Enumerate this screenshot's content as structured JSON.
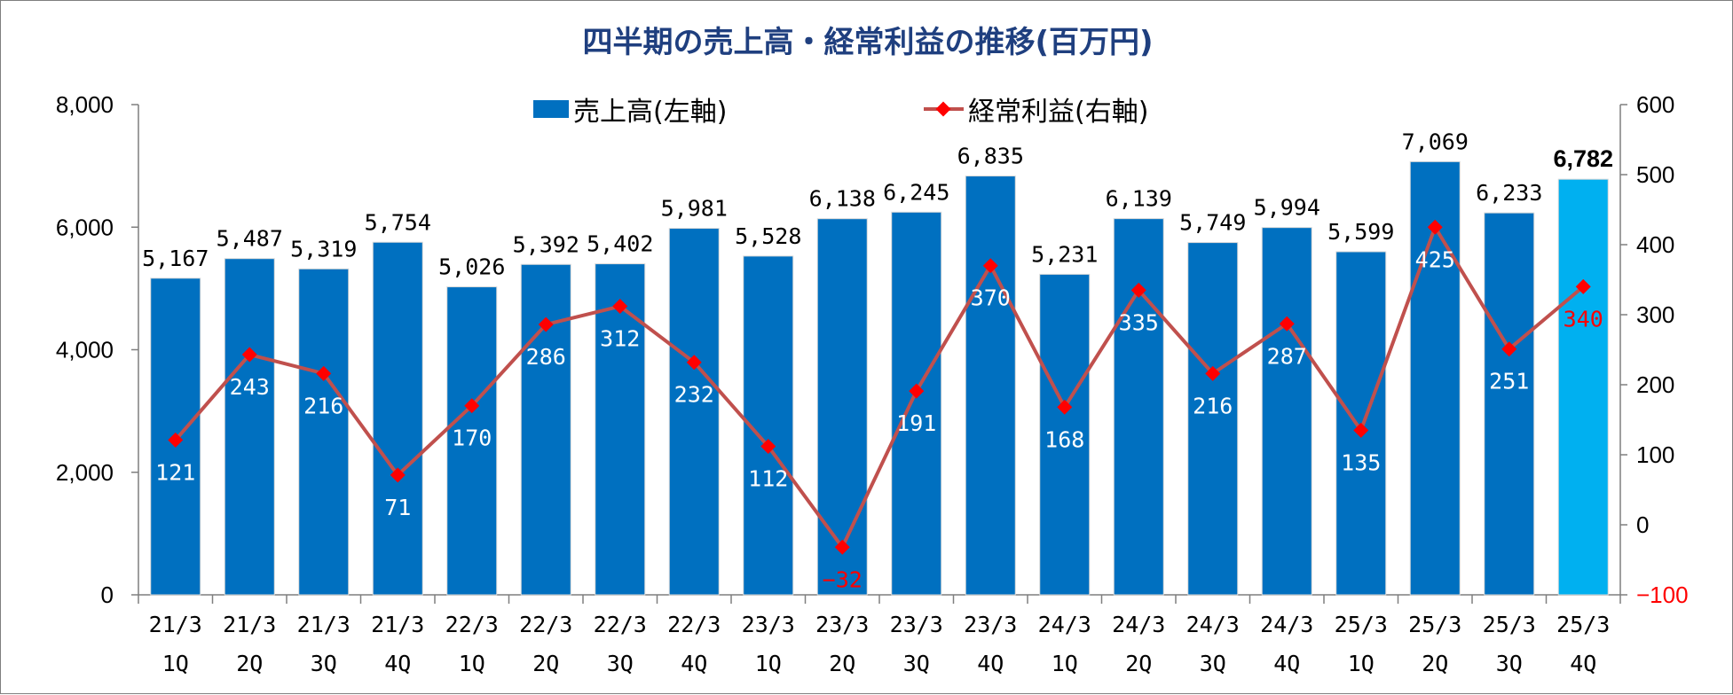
{
  "chart_data": {
    "type": "bar",
    "title": "四半期の売上高・経常利益の推移(百万円)",
    "categories": [
      [
        "21/3",
        "1Q"
      ],
      [
        "21/3",
        "2Q"
      ],
      [
        "21/3",
        "3Q"
      ],
      [
        "21/3",
        "4Q"
      ],
      [
        "22/3",
        "1Q"
      ],
      [
        "22/3",
        "2Q"
      ],
      [
        "22/3",
        "3Q"
      ],
      [
        "22/3",
        "4Q"
      ],
      [
        "23/3",
        "1Q"
      ],
      [
        "23/3",
        "2Q"
      ],
      [
        "23/3",
        "3Q"
      ],
      [
        "23/3",
        "4Q"
      ],
      [
        "24/3",
        "1Q"
      ],
      [
        "24/3",
        "2Q"
      ],
      [
        "24/3",
        "3Q"
      ],
      [
        "24/3",
        "4Q"
      ],
      [
        "25/3",
        "1Q"
      ],
      [
        "25/3",
        "2Q"
      ],
      [
        "25/3",
        "3Q"
      ],
      [
        "25/3",
        "4Q"
      ]
    ],
    "series": [
      {
        "name": "売上高(左軸)",
        "type": "bar",
        "axis": "left",
        "color": "#0070c0",
        "highlight_last_color": "#00b0f0",
        "values": [
          5167,
          5487,
          5319,
          5754,
          5026,
          5392,
          5402,
          5981,
          5528,
          6138,
          6245,
          6835,
          5231,
          6139,
          5749,
          5994,
          5599,
          7069,
          6233,
          6782
        ],
        "labels": [
          "5,167",
          "5,487",
          "5,319",
          "5,754",
          "5,026",
          "5,392",
          "5,402",
          "5,981",
          "5,528",
          "6,138",
          "6,245",
          "6,835",
          "5,231",
          "6,139",
          "5,749",
          "5,994",
          "5,599",
          "7,069",
          "6,233",
          "6,782"
        ]
      },
      {
        "name": "経常利益(右軸)",
        "type": "line",
        "axis": "right",
        "color": "#c0504d",
        "marker_color": "#ff0000",
        "values": [
          121,
          243,
          216,
          71,
          170,
          286,
          312,
          232,
          112,
          -32,
          191,
          370,
          168,
          335,
          216,
          287,
          135,
          425,
          251,
          340
        ],
        "labels": [
          "121",
          "243",
          "216",
          "71",
          "170",
          "286",
          "312",
          "232",
          "112",
          "−32",
          "191",
          "370",
          "168",
          "335",
          "216",
          "287",
          "135",
          "425",
          "251",
          "340"
        ]
      }
    ],
    "y_left": {
      "range": [
        0,
        8000
      ],
      "ticks": [
        "0",
        "2,000",
        "4,000",
        "6,000",
        "8,000"
      ]
    },
    "y_right": {
      "range": [
        -100,
        600
      ],
      "ticks": [
        "−100",
        "0",
        "100",
        "200",
        "300",
        "400",
        "500",
        "600"
      ]
    },
    "legend_position": "top",
    "grid": false
  }
}
